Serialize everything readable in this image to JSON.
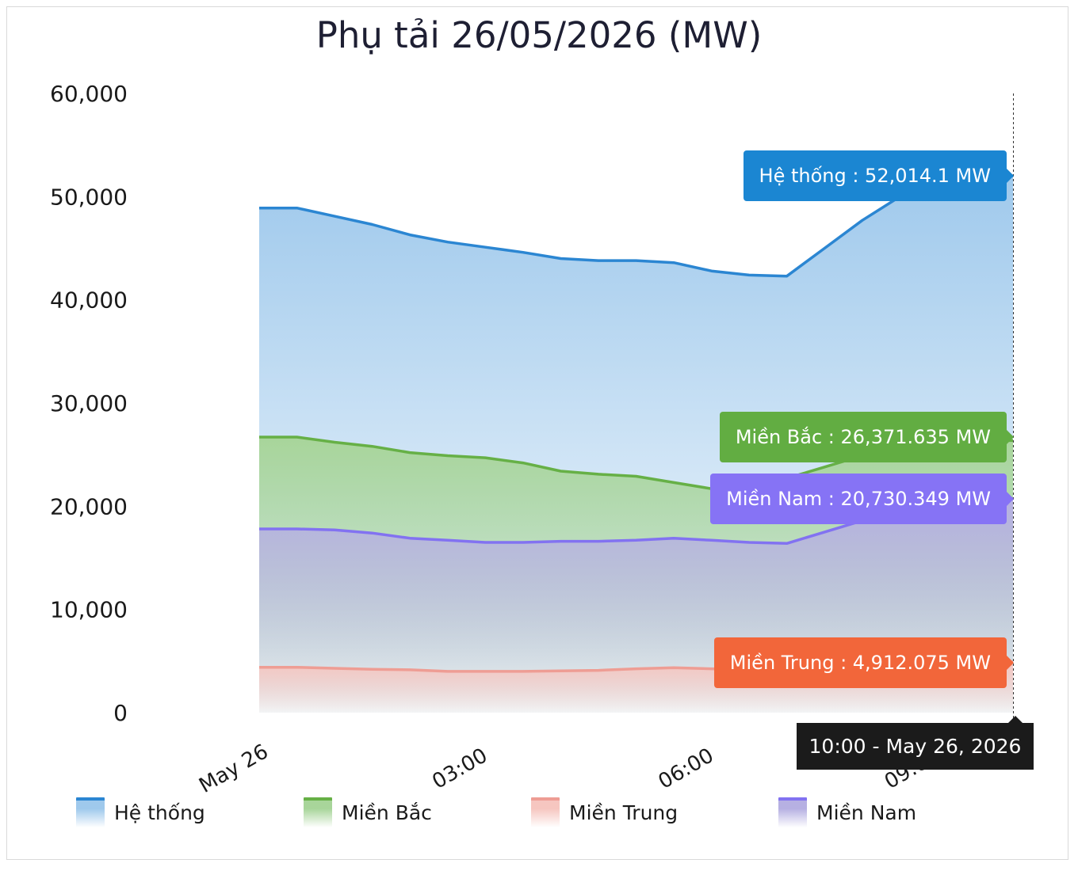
{
  "chart_data": {
    "type": "area",
    "title": "Phụ tải 26/05/2026 (MW)",
    "xlabel": "",
    "ylabel": "",
    "ylim": [
      0,
      60000
    ],
    "y_ticks": [
      "0",
      "10,000",
      "20,000",
      "30,000",
      "40,000",
      "50,000",
      "60,000"
    ],
    "x_tick_labels": [
      {
        "x": 0,
        "label": "May 26"
      },
      {
        "x": 3,
        "label": "03:00"
      },
      {
        "x": 6,
        "label": "06:00"
      },
      {
        "x": 9,
        "label": "09:00"
      }
    ],
    "x": [
      0.5,
      1,
      1.5,
      2,
      2.5,
      3,
      3.5,
      4,
      4.5,
      5,
      5.5,
      6,
      6.5,
      7,
      7.5,
      8,
      8.5,
      9,
      9.5,
      10
    ],
    "grid": false,
    "legend_position": "bottom",
    "series": [
      {
        "name": "Hệ thống",
        "color": "#2b86d2",
        "fill": "#9fc9ec",
        "values": [
          48900,
          48100,
          47300,
          46300,
          45600,
          45100,
          44600,
          44000,
          43800,
          43800,
          43600,
          42800,
          42400,
          42300,
          45000,
          47700,
          50000,
          51500,
          52000,
          52014.1
        ]
      },
      {
        "name": "Miền Bắc",
        "color": "#66b046",
        "fill": "#a8d59a",
        "values": [
          26700,
          26200,
          25800,
          25200,
          24900,
          24700,
          24200,
          23400,
          23100,
          22900,
          22300,
          21700,
          21700,
          22700,
          23800,
          24900,
          25600,
          26000,
          26300,
          26371.635
        ]
      },
      {
        "name": "Miền Nam",
        "color": "#8272f1",
        "fill": "#b6b0e2",
        "values": [
          17800,
          17700,
          17400,
          16900,
          16700,
          16500,
          16500,
          16600,
          16600,
          16700,
          16900,
          16700,
          16500,
          16400,
          17500,
          18600,
          19500,
          20200,
          20600,
          20730.349
        ]
      },
      {
        "name": "Miền Trung",
        "color": "#ee9d94",
        "fill": "#f6c6c0",
        "values": [
          4400,
          4300,
          4200,
          4150,
          4000,
          4000,
          4000,
          4050,
          4100,
          4250,
          4350,
          4250,
          4200,
          4300,
          4500,
          4650,
          4750,
          4850,
          4900,
          4912.075
        ]
      }
    ],
    "tooltip": {
      "time": "10:00 - May 26, 2026",
      "entries": [
        {
          "series": "Hệ thống",
          "text": "Hệ thống : 52,014.1 MW",
          "bg": "#1b86d2"
        },
        {
          "series": "Miền Bắc",
          "text": "Miền Bắc : 26,371.635 MW",
          "bg": "#62ad42"
        },
        {
          "series": "Miền Nam",
          "text": "Miền Nam : 20,730.349 MW",
          "bg": "#8673f5"
        },
        {
          "series": "Miền Trung",
          "text": "Miền Trung : 4,912.075 MW",
          "bg": "#f2663a"
        }
      ]
    }
  }
}
